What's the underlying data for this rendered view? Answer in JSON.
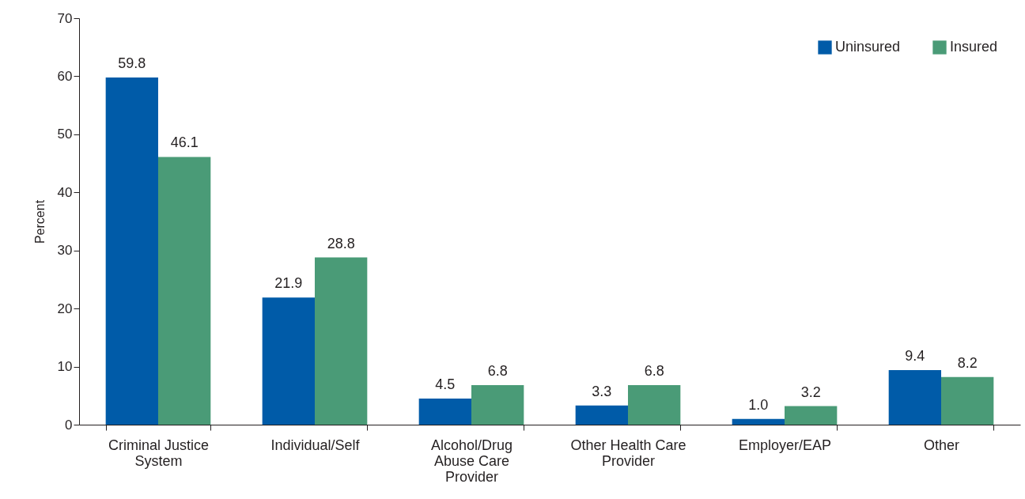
{
  "chart_data": {
    "type": "bar",
    "ylabel": "Percent",
    "categories": [
      "Criminal Justice System",
      "Individual/Self",
      "Alcohol/Drug Abuse Care Provider",
      "Other Health Care Provider",
      "Employer/EAP",
      "Other"
    ],
    "series": [
      {
        "name": "Uninsured",
        "color": "#005ba8",
        "values": [
          59.8,
          21.9,
          4.5,
          3.3,
          1.0,
          9.4
        ],
        "value_labels": [
          "59.8",
          "21.9",
          "4.5",
          "3.3",
          "1.0",
          "9.4"
        ]
      },
      {
        "name": "Insured",
        "color": "#4a9b77",
        "values": [
          46.1,
          28.8,
          6.8,
          6.8,
          3.2,
          8.2
        ],
        "value_labels": [
          "46.1",
          "28.8",
          "6.8",
          "6.8",
          "3.2",
          "8.2"
        ]
      }
    ],
    "ylim": [
      0,
      70
    ],
    "yticks": [
      0,
      10,
      20,
      30,
      40,
      50,
      60,
      70
    ],
    "grid": false,
    "legend": "top right"
  }
}
